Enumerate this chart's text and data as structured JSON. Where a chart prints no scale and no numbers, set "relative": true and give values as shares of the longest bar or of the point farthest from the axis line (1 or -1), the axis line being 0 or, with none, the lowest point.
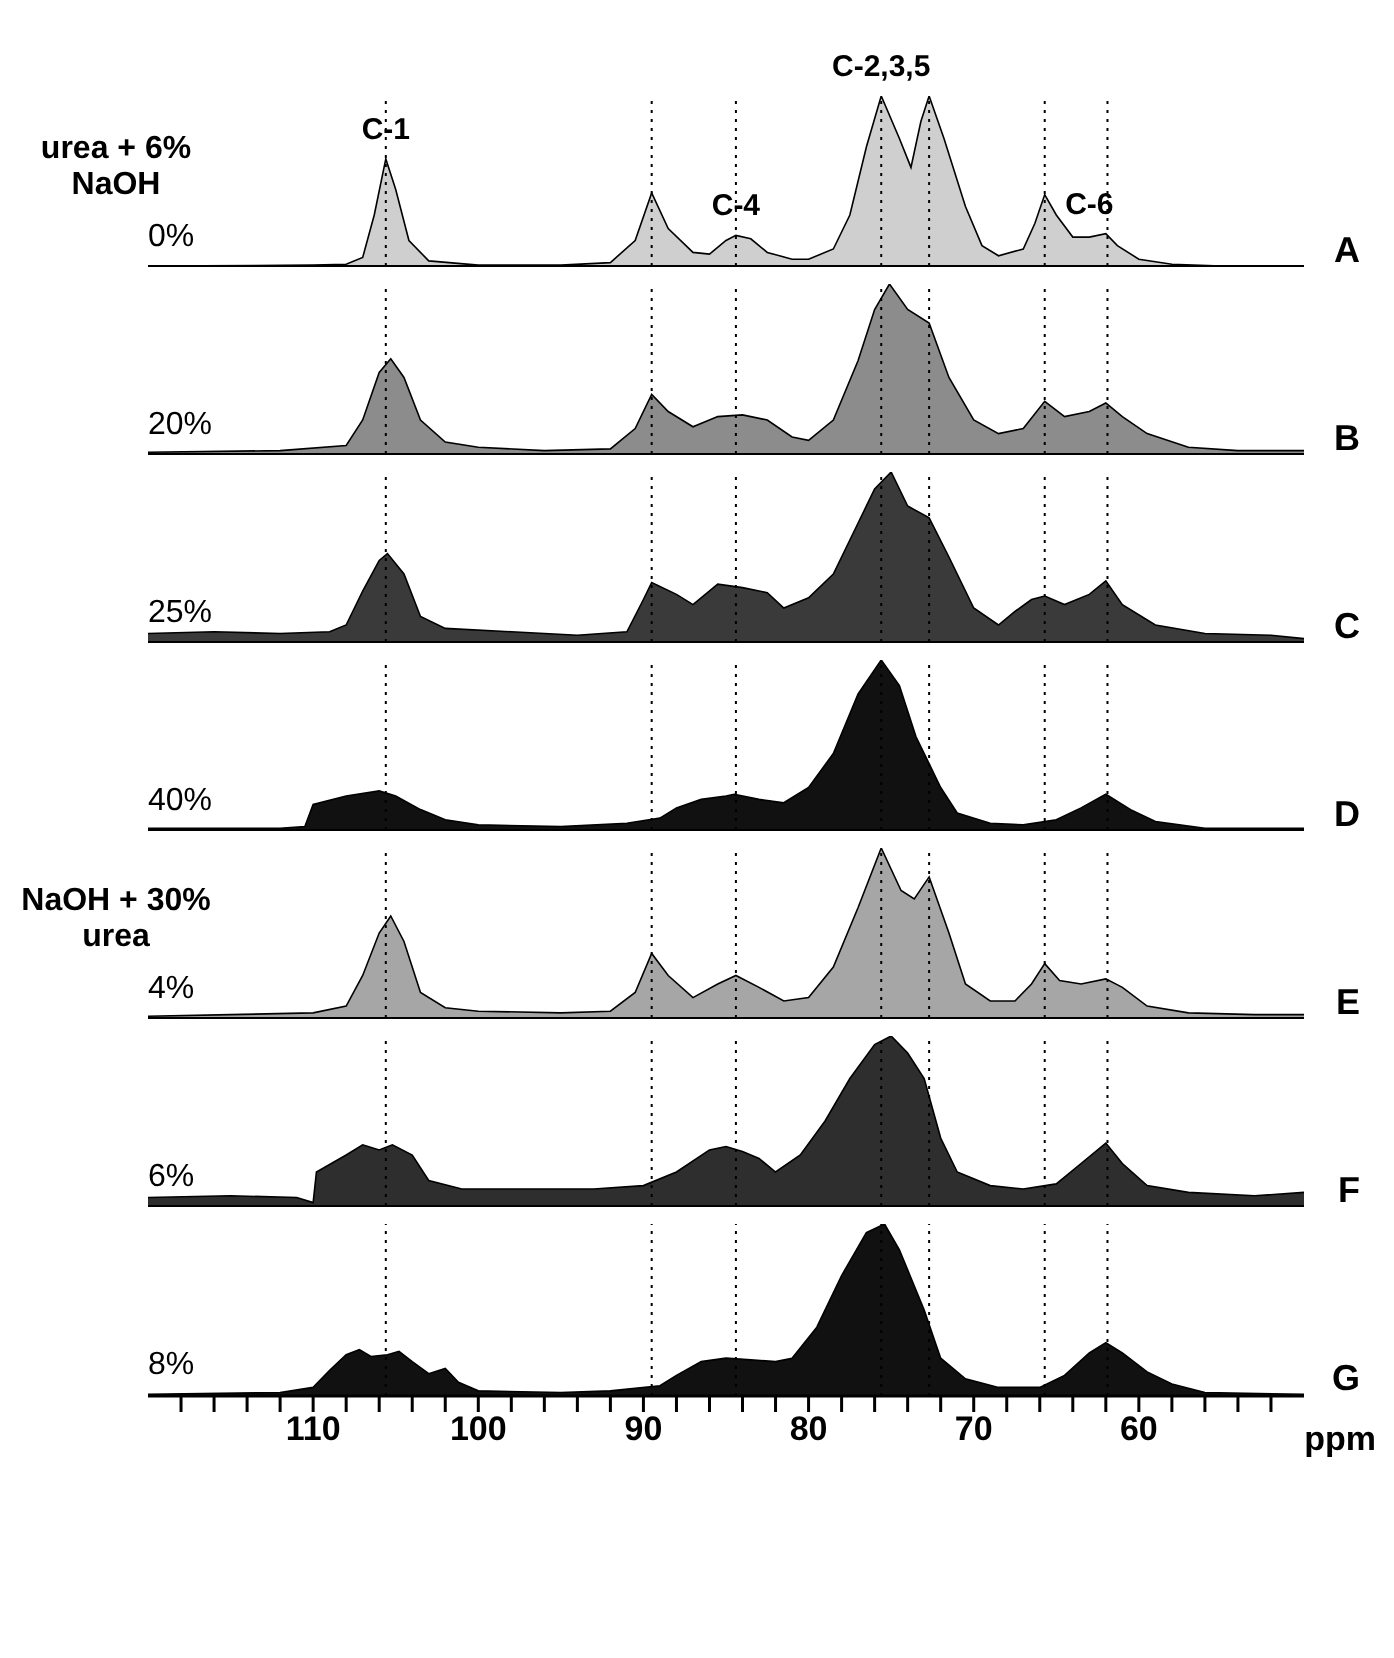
{
  "chart_data": [
    {
      "type": "area",
      "relative": true,
      "xlim": [
        120,
        50
      ],
      "tick_labels": false,
      "x": [
        120,
        110,
        108,
        107,
        106.3,
        105.6,
        105,
        104.2,
        103,
        100,
        95,
        92,
        90.5,
        89.5,
        88.5,
        87,
        86,
        85,
        84.4,
        83.5,
        82.5,
        81,
        80,
        78.5,
        77.5,
        76.5,
        75.6,
        74.5,
        73.8,
        73.2,
        72.7,
        71.8,
        70.5,
        69.5,
        68.5,
        67,
        66.3,
        65.7,
        65,
        64,
        63,
        62,
        61.3,
        60,
        58,
        55,
        50
      ],
      "series": [
        {
          "name": "A",
          "color": "#cfcfcf",
          "values": [
            0,
            0.005,
            0.01,
            0.05,
            0.3,
            0.63,
            0.45,
            0.15,
            0.03,
            0.005,
            0.005,
            0.02,
            0.15,
            0.43,
            0.22,
            0.08,
            0.07,
            0.15,
            0.18,
            0.16,
            0.08,
            0.04,
            0.04,
            0.1,
            0.3,
            0.7,
            1,
            0.75,
            0.58,
            0.85,
            1,
            0.75,
            0.35,
            0.12,
            0.06,
            0.1,
            0.25,
            0.42,
            0.3,
            0.17,
            0.17,
            0.19,
            0.12,
            0.04,
            0.01,
            0,
            0
          ]
        }
      ],
      "annotations": [
        "urea + 6% NaOH",
        "0%",
        {
          "text": "C-1",
          "x": 105.6,
          "y": 0.63
        },
        {
          "text": "C-4",
          "x": 84.4,
          "y": 0.18
        },
        {
          "text": "C-2,3,5",
          "x": 75.6,
          "y": 1
        },
        {
          "text": "C-6",
          "x": 63,
          "y": 0.19
        }
      ],
      "ref_lines": [
        {
          "axis": "x",
          "value": 105.6,
          "line_style": "dotted"
        },
        {
          "axis": "x",
          "value": 89.5,
          "line_style": "dotted"
        },
        {
          "axis": "x",
          "value": 84.4,
          "line_style": "dotted"
        },
        {
          "axis": "x",
          "value": 75.6,
          "line_style": "dotted"
        },
        {
          "axis": "x",
          "value": 72.7,
          "line_style": "dotted"
        },
        {
          "axis": "x",
          "value": 65.7,
          "line_style": "dotted"
        },
        {
          "axis": "x",
          "value": 61.9,
          "line_style": "dotted"
        }
      ]
    },
    {
      "type": "area",
      "relative": true,
      "xlim": [
        120,
        50
      ],
      "tick_labels": false,
      "x": [
        120,
        112,
        108,
        107,
        106,
        105.3,
        104.5,
        103.5,
        102,
        100,
        96,
        92,
        90.5,
        89.5,
        88.5,
        87,
        85.5,
        84,
        82.5,
        81,
        80,
        78.5,
        77,
        76,
        75.1,
        74,
        72.7,
        71.5,
        70,
        68.5,
        67,
        65.7,
        64.5,
        63,
        62,
        61,
        59.5,
        57,
        54,
        50
      ],
      "series": [
        {
          "name": "B",
          "color": "#8c8c8c",
          "values": [
            0.01,
            0.02,
            0.05,
            0.2,
            0.48,
            0.56,
            0.45,
            0.2,
            0.07,
            0.04,
            0.02,
            0.03,
            0.15,
            0.35,
            0.25,
            0.16,
            0.22,
            0.23,
            0.2,
            0.1,
            0.08,
            0.2,
            0.55,
            0.85,
            1,
            0.85,
            0.77,
            0.45,
            0.2,
            0.12,
            0.15,
            0.31,
            0.22,
            0.25,
            0.3,
            0.22,
            0.12,
            0.04,
            0.02,
            0.02
          ]
        }
      ],
      "annotations": [
        "20%"
      ],
      "ref_lines": [
        {
          "axis": "x",
          "value": 105.6,
          "line_style": "dotted"
        },
        {
          "axis": "x",
          "value": 89.5,
          "line_style": "dotted"
        },
        {
          "axis": "x",
          "value": 84.4,
          "line_style": "dotted"
        },
        {
          "axis": "x",
          "value": 75.6,
          "line_style": "dotted"
        },
        {
          "axis": "x",
          "value": 72.7,
          "line_style": "dotted"
        },
        {
          "axis": "x",
          "value": 65.7,
          "line_style": "dotted"
        },
        {
          "axis": "x",
          "value": 61.9,
          "line_style": "dotted"
        }
      ]
    },
    {
      "type": "area",
      "relative": true,
      "xlim": [
        120,
        50
      ],
      "tick_labels": false,
      "x": [
        120,
        116,
        112,
        109,
        108,
        107,
        106,
        105.5,
        104.5,
        103.5,
        102,
        98,
        94,
        91,
        90,
        89.5,
        88,
        87,
        85.5,
        84,
        82.5,
        81.5,
        80,
        78.5,
        77,
        76,
        75,
        74,
        72.7,
        71.5,
        70,
        68.5,
        67.5,
        66.5,
        65.7,
        64.5,
        63,
        62,
        61,
        59,
        56,
        52,
        50
      ],
      "series": [
        {
          "name": "C",
          "color": "#3a3a3a",
          "values": [
            0.05,
            0.06,
            0.05,
            0.06,
            0.1,
            0.3,
            0.48,
            0.52,
            0.4,
            0.15,
            0.08,
            0.06,
            0.04,
            0.06,
            0.25,
            0.35,
            0.28,
            0.22,
            0.34,
            0.32,
            0.29,
            0.2,
            0.26,
            0.4,
            0.7,
            0.9,
            1,
            0.8,
            0.73,
            0.5,
            0.2,
            0.1,
            0.18,
            0.25,
            0.27,
            0.22,
            0.28,
            0.36,
            0.22,
            0.1,
            0.05,
            0.04,
            0.02
          ]
        }
      ],
      "annotations": [
        "25%"
      ],
      "ref_lines": [
        {
          "axis": "x",
          "value": 105.6,
          "line_style": "dotted"
        },
        {
          "axis": "x",
          "value": 89.5,
          "line_style": "dotted"
        },
        {
          "axis": "x",
          "value": 84.4,
          "line_style": "dotted"
        },
        {
          "axis": "x",
          "value": 75.6,
          "line_style": "dotted"
        },
        {
          "axis": "x",
          "value": 72.7,
          "line_style": "dotted"
        },
        {
          "axis": "x",
          "value": 65.7,
          "line_style": "dotted"
        },
        {
          "axis": "x",
          "value": 61.9,
          "line_style": "dotted"
        }
      ]
    },
    {
      "type": "area",
      "relative": true,
      "xlim": [
        120,
        50
      ],
      "tick_labels": false,
      "x": [
        120,
        112,
        110.5,
        110,
        108,
        106,
        105,
        103.5,
        102,
        100,
        95,
        91,
        89,
        88,
        86.5,
        85,
        84.5,
        83,
        81.5,
        80,
        78.5,
        77,
        75.6,
        74.5,
        73.5,
        72,
        71,
        69,
        67,
        65,
        63.5,
        62,
        60.5,
        59,
        56,
        50
      ],
      "series": [
        {
          "name": "D",
          "color": "#111111",
          "values": [
            0.01,
            0.01,
            0.02,
            0.15,
            0.2,
            0.23,
            0.2,
            0.12,
            0.06,
            0.03,
            0.02,
            0.04,
            0.07,
            0.13,
            0.18,
            0.2,
            0.21,
            0.18,
            0.16,
            0.25,
            0.45,
            0.8,
            1,
            0.85,
            0.55,
            0.25,
            0.1,
            0.04,
            0.03,
            0.06,
            0.13,
            0.21,
            0.12,
            0.05,
            0.01,
            0.01
          ]
        }
      ],
      "annotations": [
        "40%"
      ],
      "ref_lines": [
        {
          "axis": "x",
          "value": 105.6,
          "line_style": "dotted"
        },
        {
          "axis": "x",
          "value": 89.5,
          "line_style": "dotted"
        },
        {
          "axis": "x",
          "value": 84.4,
          "line_style": "dotted"
        },
        {
          "axis": "x",
          "value": 75.6,
          "line_style": "dotted"
        },
        {
          "axis": "x",
          "value": 72.7,
          "line_style": "dotted"
        },
        {
          "axis": "x",
          "value": 65.7,
          "line_style": "dotted"
        },
        {
          "axis": "x",
          "value": 61.9,
          "line_style": "dotted"
        }
      ]
    },
    {
      "type": "area",
      "relative": true,
      "xlim": [
        120,
        50
      ],
      "tick_labels": false,
      "x": [
        120,
        115,
        110,
        108,
        107,
        106,
        105.3,
        104.5,
        103.5,
        102,
        100,
        95,
        92,
        90.5,
        89.5,
        88.5,
        87,
        85.5,
        84.4,
        83,
        81.5,
        80,
        78.5,
        77,
        75.6,
        74.4,
        73.6,
        72.7,
        71.5,
        70.5,
        69,
        67.5,
        66.5,
        65.7,
        64.8,
        63.5,
        62,
        61,
        59.5,
        57,
        53,
        50
      ],
      "series": [
        {
          "name": "E",
          "color": "#a6a6a6",
          "values": [
            0.01,
            0.02,
            0.03,
            0.07,
            0.25,
            0.5,
            0.6,
            0.45,
            0.15,
            0.06,
            0.04,
            0.03,
            0.04,
            0.15,
            0.38,
            0.25,
            0.12,
            0.2,
            0.25,
            0.18,
            0.1,
            0.12,
            0.3,
            0.65,
            1,
            0.75,
            0.7,
            0.83,
            0.5,
            0.2,
            0.1,
            0.1,
            0.2,
            0.32,
            0.22,
            0.2,
            0.23,
            0.18,
            0.07,
            0.03,
            0.02,
            0.02
          ]
        }
      ],
      "annotations": [
        "NaOH + 30% urea",
        "4%"
      ],
      "ref_lines": [
        {
          "axis": "x",
          "value": 105.6,
          "line_style": "dotted"
        },
        {
          "axis": "x",
          "value": 89.5,
          "line_style": "dotted"
        },
        {
          "axis": "x",
          "value": 84.4,
          "line_style": "dotted"
        },
        {
          "axis": "x",
          "value": 75.6,
          "line_style": "dotted"
        },
        {
          "axis": "x",
          "value": 72.7,
          "line_style": "dotted"
        },
        {
          "axis": "x",
          "value": 65.7,
          "line_style": "dotted"
        },
        {
          "axis": "x",
          "value": 61.9,
          "line_style": "dotted"
        }
      ]
    },
    {
      "type": "area",
      "relative": true,
      "xlim": [
        120,
        50
      ],
      "tick_labels": false,
      "x": [
        120,
        115,
        111,
        110,
        109.8,
        108,
        107,
        106,
        105.2,
        104,
        103,
        101,
        97,
        93,
        90,
        88,
        86,
        85,
        84,
        83,
        82,
        80.5,
        79,
        77.5,
        76,
        75,
        74,
        73,
        72,
        71,
        69,
        67,
        65,
        63.5,
        62,
        61,
        59.5,
        57,
        53,
        50
      ],
      "series": [
        {
          "name": "F",
          "color": "#2e2e2e",
          "values": [
            0.05,
            0.06,
            0.05,
            0.02,
            0.2,
            0.3,
            0.36,
            0.33,
            0.36,
            0.3,
            0.15,
            0.1,
            0.1,
            0.1,
            0.12,
            0.2,
            0.33,
            0.35,
            0.32,
            0.28,
            0.2,
            0.3,
            0.5,
            0.75,
            0.95,
            1,
            0.9,
            0.75,
            0.4,
            0.2,
            0.12,
            0.1,
            0.13,
            0.25,
            0.37,
            0.25,
            0.12,
            0.08,
            0.06,
            0.08
          ]
        }
      ],
      "annotations": [
        "6%"
      ],
      "ref_lines": [
        {
          "axis": "x",
          "value": 105.6,
          "line_style": "dotted"
        },
        {
          "axis": "x",
          "value": 89.5,
          "line_style": "dotted"
        },
        {
          "axis": "x",
          "value": 84.4,
          "line_style": "dotted"
        },
        {
          "axis": "x",
          "value": 75.6,
          "line_style": "dotted"
        },
        {
          "axis": "x",
          "value": 72.7,
          "line_style": "dotted"
        },
        {
          "axis": "x",
          "value": 65.7,
          "line_style": "dotted"
        },
        {
          "axis": "x",
          "value": 61.9,
          "line_style": "dotted"
        }
      ]
    },
    {
      "type": "area",
      "relative": true,
      "xlim": [
        120,
        50
      ],
      "tick_labels": "x",
      "xlabel": "ppm",
      "xticks": [
        {
          "value": 118,
          "label": null
        },
        {
          "value": 116,
          "label": null
        },
        {
          "value": 114,
          "label": null
        },
        {
          "value": 112,
          "label": null
        },
        110,
        {
          "value": 108,
          "label": null
        },
        {
          "value": 106,
          "label": null
        },
        {
          "value": 104,
          "label": null
        },
        {
          "value": 102,
          "label": null
        },
        100,
        {
          "value": 98,
          "label": null
        },
        {
          "value": 96,
          "label": null
        },
        {
          "value": 94,
          "label": null
        },
        {
          "value": 92,
          "label": null
        },
        90,
        {
          "value": 88,
          "label": null
        },
        {
          "value": 86,
          "label": null
        },
        {
          "value": 84,
          "label": null
        },
        {
          "value": 82,
          "label": null
        },
        80,
        {
          "value": 78,
          "label": null
        },
        {
          "value": 76,
          "label": null
        },
        {
          "value": 74,
          "label": null
        },
        {
          "value": 72,
          "label": null
        },
        70,
        {
          "value": 68,
          "label": null
        },
        {
          "value": 66,
          "label": null
        },
        {
          "value": 64,
          "label": null
        },
        {
          "value": 62,
          "label": null
        },
        60,
        {
          "value": 58,
          "label": null
        },
        {
          "value": 56,
          "label": null
        },
        {
          "value": 54,
          "label": null
        },
        {
          "value": 52,
          "label": null
        }
      ],
      "x": [
        120,
        112,
        110,
        109,
        108,
        107.2,
        106.5,
        105.5,
        104.8,
        104,
        103,
        102,
        101.2,
        100,
        95,
        92,
        89,
        88,
        86.5,
        85,
        83.5,
        82,
        81,
        79.5,
        78,
        76.5,
        75.4,
        74.5,
        73,
        72,
        70.5,
        68.5,
        66,
        64.5,
        63,
        62,
        61,
        59.5,
        58,
        56,
        50
      ],
      "series": [
        {
          "name": "G",
          "color": "#111111",
          "values": [
            0.01,
            0.02,
            0.05,
            0.15,
            0.24,
            0.27,
            0.23,
            0.24,
            0.26,
            0.2,
            0.13,
            0.16,
            0.08,
            0.03,
            0.02,
            0.03,
            0.06,
            0.12,
            0.2,
            0.22,
            0.21,
            0.2,
            0.22,
            0.4,
            0.7,
            0.95,
            1,
            0.85,
            0.5,
            0.22,
            0.1,
            0.05,
            0.05,
            0.12,
            0.25,
            0.31,
            0.25,
            0.14,
            0.07,
            0.02,
            0.01
          ]
        }
      ],
      "annotations": [
        "8%"
      ],
      "ref_lines": [
        {
          "axis": "x",
          "value": 105.6,
          "line_style": "dotted"
        },
        {
          "axis": "x",
          "value": 89.5,
          "line_style": "dotted"
        },
        {
          "axis": "x",
          "value": 84.4,
          "line_style": "dotted"
        },
        {
          "axis": "x",
          "value": 75.6,
          "line_style": "dotted"
        },
        {
          "axis": "x",
          "value": 72.7,
          "line_style": "dotted"
        },
        {
          "axis": "x",
          "value": 65.7,
          "line_style": "dotted"
        },
        {
          "axis": "x",
          "value": 61.9,
          "line_style": "dotted"
        }
      ]
    }
  ]
}
